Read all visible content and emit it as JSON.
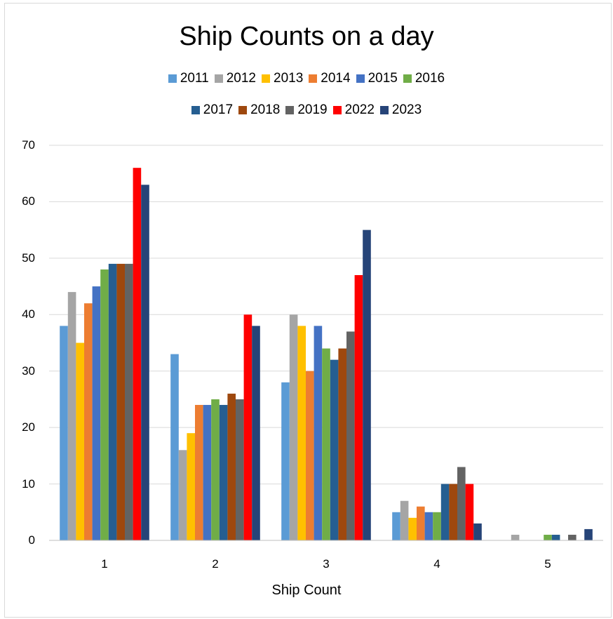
{
  "chart_data": {
    "type": "bar",
    "title": "Ship Counts on a day",
    "xlabel": "Ship Count",
    "ylabel": "",
    "categories": [
      "1",
      "2",
      "3",
      "4",
      "5"
    ],
    "ylim": [
      0,
      70
    ],
    "yticks": [
      "0",
      "10",
      "20",
      "30",
      "40",
      "50",
      "60",
      "70"
    ],
    "grid": true,
    "legend_position": "top",
    "series": [
      {
        "name": "2011",
        "color": "#5b9bd5",
        "values": [
          38,
          33,
          28,
          5,
          0
        ]
      },
      {
        "name": "2012",
        "color": "#a5a5a5",
        "values": [
          44,
          16,
          40,
          7,
          1
        ]
      },
      {
        "name": "2013",
        "color": "#ffc000",
        "values": [
          35,
          19,
          38,
          4,
          0
        ]
      },
      {
        "name": "2014",
        "color": "#ed7d31",
        "values": [
          42,
          24,
          30,
          6,
          0
        ]
      },
      {
        "name": "2015",
        "color": "#4472c4",
        "values": [
          45,
          24,
          38,
          5,
          0
        ]
      },
      {
        "name": "2016",
        "color": "#70ad47",
        "values": [
          48,
          25,
          34,
          5,
          1
        ]
      },
      {
        "name": "2017",
        "color": "#255e91",
        "values": [
          49,
          24,
          32,
          10,
          1
        ]
      },
      {
        "name": "2018",
        "color": "#9e480e",
        "values": [
          49,
          26,
          34,
          10,
          0
        ]
      },
      {
        "name": "2019",
        "color": "#636363",
        "values": [
          49,
          25,
          37,
          13,
          1
        ]
      },
      {
        "name": "2022",
        "color": "#ff0000",
        "values": [
          66,
          40,
          47,
          10,
          0
        ]
      },
      {
        "name": "2023",
        "color": "#264478",
        "values": [
          63,
          38,
          55,
          3,
          2
        ]
      }
    ]
  },
  "colors": {
    "gridline": "#d9d9d9",
    "axis": "#bfbfbf",
    "border": "#d9d9d9"
  }
}
